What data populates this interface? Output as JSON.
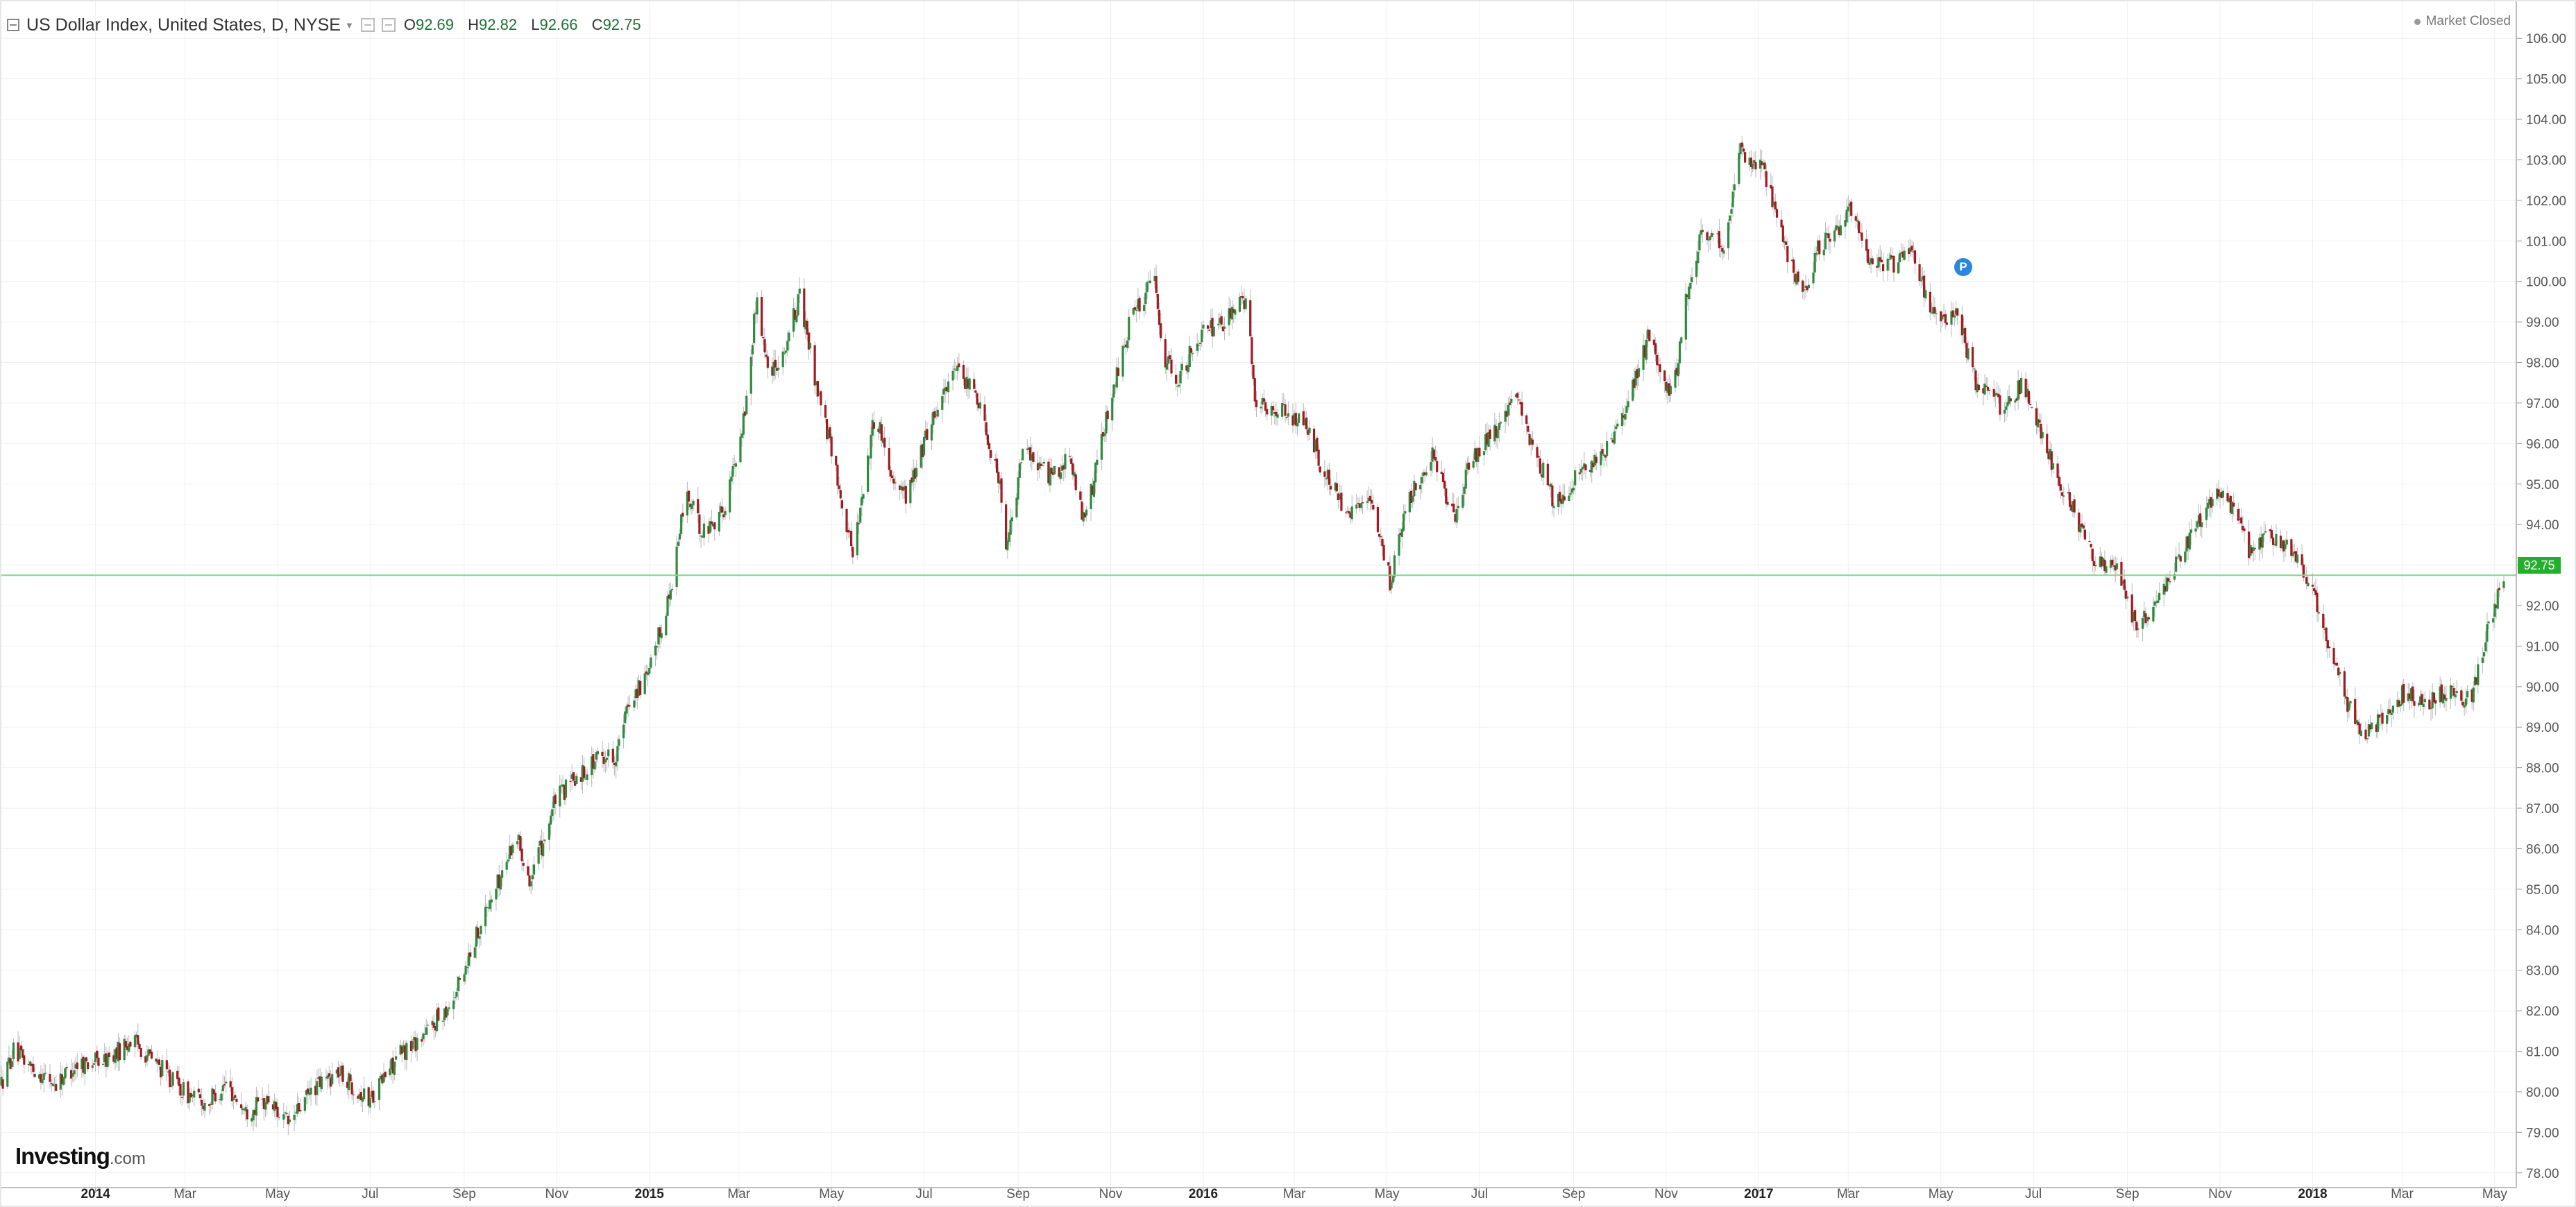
{
  "header": {
    "title": "US Dollar Index, United States, D, NYSE",
    "open_label": "O",
    "open": "92.69",
    "high_label": "H",
    "high": "92.82",
    "low_label": "L",
    "low": "92.66",
    "close_label": "C",
    "close": "92.75"
  },
  "status": {
    "text": "Market Closed"
  },
  "logo": {
    "main": "Investing",
    "suffix": ".com"
  },
  "price_label": "92.75",
  "marker": {
    "letter": "P"
  },
  "colors": {
    "up": "#2e8b3d",
    "down": "#a11a20",
    "last_line": "#7fd88a",
    "grid": "#f0f0f0",
    "axis_text": "#555555"
  },
  "chart_data": {
    "type": "candlestick",
    "title": "US Dollar Index, United States, D, NYSE",
    "ylim": [
      77.5,
      106.5
    ],
    "y_ticks": [
      "78.00",
      "79.00",
      "80.00",
      "81.00",
      "82.00",
      "83.00",
      "84.00",
      "85.00",
      "86.00",
      "87.00",
      "88.00",
      "89.00",
      "90.00",
      "91.00",
      "92.00",
      "93.00",
      "94.00",
      "95.00",
      "96.00",
      "97.00",
      "98.00",
      "99.00",
      "100.00",
      "101.00",
      "102.00",
      "103.00",
      "104.00",
      "105.00",
      "106.00"
    ],
    "x_ticks": [
      {
        "label": "2014",
        "bold": true
      },
      {
        "label": "Mar",
        "bold": false
      },
      {
        "label": "May",
        "bold": false
      },
      {
        "label": "Jul",
        "bold": false
      },
      {
        "label": "Sep",
        "bold": false
      },
      {
        "label": "Nov",
        "bold": false
      },
      {
        "label": "2015",
        "bold": true
      },
      {
        "label": "Mar",
        "bold": false
      },
      {
        "label": "May",
        "bold": false
      },
      {
        "label": "Jul",
        "bold": false
      },
      {
        "label": "Sep",
        "bold": false
      },
      {
        "label": "Nov",
        "bold": false
      },
      {
        "label": "2016",
        "bold": true
      },
      {
        "label": "Mar",
        "bold": false
      },
      {
        "label": "May",
        "bold": false
      },
      {
        "label": "Jul",
        "bold": false
      },
      {
        "label": "Sep",
        "bold": false
      },
      {
        "label": "Nov",
        "bold": false
      },
      {
        "label": "2017",
        "bold": true
      },
      {
        "label": "Mar",
        "bold": false
      },
      {
        "label": "May",
        "bold": false
      },
      {
        "label": "Jul",
        "bold": false
      },
      {
        "label": "Sep",
        "bold": false
      },
      {
        "label": "Nov",
        "bold": false
      },
      {
        "label": "2018",
        "bold": true
      },
      {
        "label": "Mar",
        "bold": false
      },
      {
        "label": "May",
        "bold": false
      }
    ],
    "start_date": "2013-10-31",
    "end_date": "2018-05-07",
    "path": [
      [
        "2013-10-31",
        80.2
      ],
      [
        "2013-11-08",
        81.0
      ],
      [
        "2013-11-20",
        80.6
      ],
      [
        "2013-12-05",
        80.2
      ],
      [
        "2013-12-20",
        80.7
      ],
      [
        "2014-01-10",
        80.8
      ],
      [
        "2014-01-25",
        81.3
      ],
      [
        "2014-02-10",
        80.7
      ],
      [
        "2014-02-28",
        80.0
      ],
      [
        "2014-03-15",
        79.7
      ],
      [
        "2014-03-28",
        80.2
      ],
      [
        "2014-04-10",
        79.5
      ],
      [
        "2014-04-25",
        79.8
      ],
      [
        "2014-05-08",
        79.2
      ],
      [
        "2014-05-25",
        80.1
      ],
      [
        "2014-06-10",
        80.5
      ],
      [
        "2014-06-30",
        79.8
      ],
      [
        "2014-07-20",
        80.9
      ],
      [
        "2014-08-08",
        81.5
      ],
      [
        "2014-08-25",
        82.3
      ],
      [
        "2014-09-10",
        84.0
      ],
      [
        "2014-09-25",
        85.3
      ],
      [
        "2014-10-05",
        86.4
      ],
      [
        "2014-10-15",
        85.2
      ],
      [
        "2014-10-31",
        87.2
      ],
      [
        "2014-11-15",
        87.8
      ],
      [
        "2014-11-30",
        88.3
      ],
      [
        "2014-12-10",
        88.3
      ],
      [
        "2014-12-20",
        89.8
      ],
      [
        "2014-12-31",
        90.2
      ],
      [
        "2015-01-15",
        92.4
      ],
      [
        "2015-01-25",
        94.8
      ],
      [
        "2015-02-05",
        93.8
      ],
      [
        "2015-02-20",
        94.4
      ],
      [
        "2015-03-05",
        96.8
      ],
      [
        "2015-03-13",
        99.7
      ],
      [
        "2015-03-20",
        97.8
      ],
      [
        "2015-03-30",
        98.2
      ],
      [
        "2015-04-10",
        99.6
      ],
      [
        "2015-04-22",
        97.3
      ],
      [
        "2015-05-05",
        95.1
      ],
      [
        "2015-05-15",
        93.3
      ],
      [
        "2015-05-30",
        96.8
      ],
      [
        "2015-06-10",
        95.2
      ],
      [
        "2015-06-20",
        94.7
      ],
      [
        "2015-07-05",
        96.5
      ],
      [
        "2015-07-20",
        97.8
      ],
      [
        "2015-08-05",
        97.2
      ],
      [
        "2015-08-20",
        95.0
      ],
      [
        "2015-08-24",
        93.2
      ],
      [
        "2015-09-05",
        96.0
      ],
      [
        "2015-09-20",
        95.2
      ],
      [
        "2015-10-05",
        95.6
      ],
      [
        "2015-10-15",
        94.0
      ],
      [
        "2015-10-30",
        96.8
      ],
      [
        "2015-11-15",
        99.2
      ],
      [
        "2015-11-30",
        100.0
      ],
      [
        "2015-12-05",
        98.2
      ],
      [
        "2015-12-15",
        97.6
      ],
      [
        "2015-12-30",
        98.7
      ],
      [
        "2016-01-15",
        99.0
      ],
      [
        "2016-01-29",
        99.6
      ],
      [
        "2016-02-05",
        96.9
      ],
      [
        "2016-02-20",
        96.8
      ],
      [
        "2016-03-10",
        96.4
      ],
      [
        "2016-03-20",
        95.3
      ],
      [
        "2016-04-05",
        94.3
      ],
      [
        "2016-04-20",
        94.5
      ],
      [
        "2016-05-03",
        92.6
      ],
      [
        "2016-05-15",
        94.6
      ],
      [
        "2016-05-31",
        95.8
      ],
      [
        "2016-06-15",
        94.0
      ],
      [
        "2016-06-24",
        95.6
      ],
      [
        "2016-07-10",
        96.2
      ],
      [
        "2016-07-25",
        97.1
      ],
      [
        "2016-08-10",
        95.5
      ],
      [
        "2016-08-20",
        94.5
      ],
      [
        "2016-09-05",
        95.3
      ],
      [
        "2016-09-20",
        95.6
      ],
      [
        "2016-10-05",
        96.7
      ],
      [
        "2016-10-20",
        98.6
      ],
      [
        "2016-11-05",
        97.1
      ],
      [
        "2016-11-15",
        99.8
      ],
      [
        "2016-11-25",
        101.3
      ],
      [
        "2016-12-10",
        100.9
      ],
      [
        "2016-12-20",
        103.2
      ],
      [
        "2017-01-03",
        102.9
      ],
      [
        "2017-01-15",
        101.2
      ],
      [
        "2017-01-30",
        99.7
      ],
      [
        "2017-02-10",
        100.9
      ],
      [
        "2017-02-20",
        101.1
      ],
      [
        "2017-03-01",
        101.9
      ],
      [
        "2017-03-15",
        100.6
      ],
      [
        "2017-03-30",
        100.4
      ],
      [
        "2017-04-10",
        100.9
      ],
      [
        "2017-04-25",
        99.2
      ],
      [
        "2017-05-05",
        98.9
      ],
      [
        "2017-05-10",
        99.4
      ],
      [
        "2017-05-25",
        97.4
      ],
      [
        "2017-06-10",
        96.9
      ],
      [
        "2017-06-25",
        97.5
      ],
      [
        "2017-07-10",
        95.8
      ],
      [
        "2017-07-25",
        94.5
      ],
      [
        "2017-08-10",
        93.2
      ],
      [
        "2017-08-25",
        92.9
      ],
      [
        "2017-09-08",
        91.4
      ],
      [
        "2017-09-20",
        92.1
      ],
      [
        "2017-10-05",
        93.2
      ],
      [
        "2017-10-25",
        94.6
      ],
      [
        "2017-11-05",
        94.8
      ],
      [
        "2017-11-20",
        93.4
      ],
      [
        "2017-12-05",
        93.7
      ],
      [
        "2017-12-20",
        93.3
      ],
      [
        "2018-01-05",
        91.9
      ],
      [
        "2018-01-20",
        90.0
      ],
      [
        "2018-02-01",
        88.8
      ],
      [
        "2018-02-15",
        89.2
      ],
      [
        "2018-03-01",
        89.8
      ],
      [
        "2018-03-15",
        89.6
      ],
      [
        "2018-04-01",
        89.9
      ],
      [
        "2018-04-15",
        89.6
      ],
      [
        "2018-04-25",
        91.2
      ],
      [
        "2018-05-07",
        92.75
      ]
    ],
    "last_price": 92.75
  }
}
